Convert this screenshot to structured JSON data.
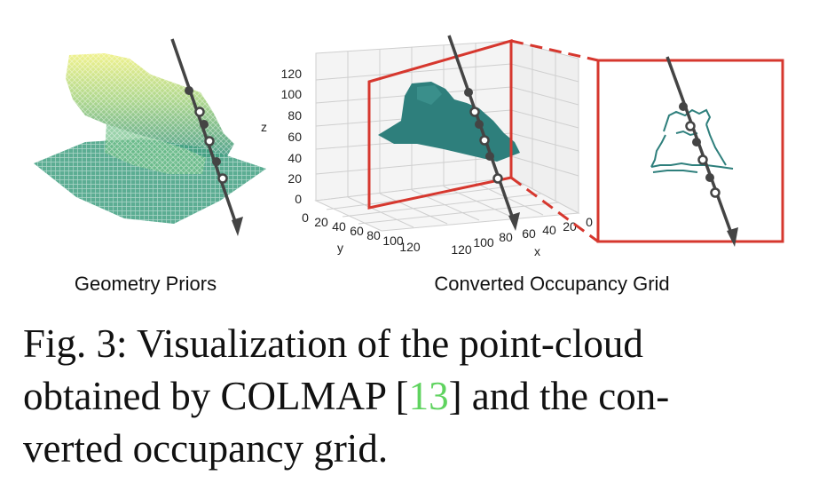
{
  "figure": {
    "left_panel_label": "Geometry Priors",
    "right_panel_label": "Converted Occupancy Grid",
    "plot3d": {
      "z_axis_label": "z",
      "y_axis_label": "y",
      "x_axis_label": "x",
      "z_ticks": [
        "0",
        "20",
        "40",
        "60",
        "80",
        "100",
        "120"
      ],
      "y_ticks": [
        "0",
        "20",
        "40",
        "60",
        "80",
        "100",
        "120"
      ],
      "x_ticks": [
        "120",
        "100",
        "80",
        "60",
        "40",
        "20",
        "0"
      ]
    },
    "colors": {
      "highlight_box": "#d6372e",
      "ray": "#444444",
      "grid_occupancy": "#2e7f7c",
      "cloud_top": "#e6ea6a",
      "cloud_bottom": "#2f9a7a"
    }
  },
  "caption": {
    "line1": "Fig. 3: Visualization of the point-cloud",
    "line2_before": "obtained by COLMAP [",
    "line2_ref": "13",
    "line2_after": "] and the con-",
    "line3": "verted occupancy grid."
  }
}
